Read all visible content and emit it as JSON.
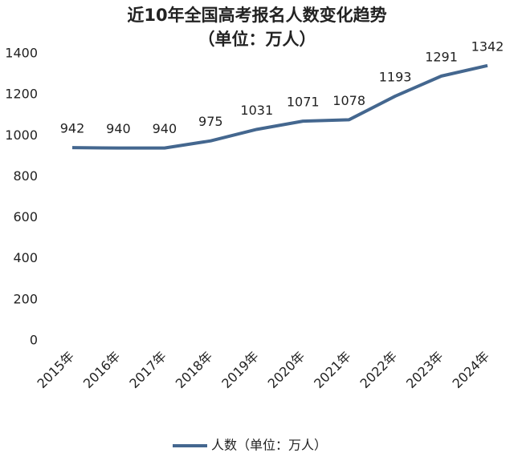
{
  "chart_data": {
    "type": "line",
    "title": "近10年全国高考报名人数变化趋势",
    "subtitle": "（单位：万人）",
    "categories": [
      "2015年",
      "2016年",
      "2017年",
      "2018年",
      "2019年",
      "2020年",
      "2021年",
      "2022年",
      "2023年",
      "2024年"
    ],
    "series": [
      {
        "name": "人数（单位：万人）",
        "color": "#44678f",
        "values": [
          942,
          940,
          940,
          975,
          1031,
          1071,
          1078,
          1193,
          1291,
          1342
        ]
      }
    ],
    "ylim": [
      0,
      1400
    ],
    "yticks": [
      0,
      200,
      400,
      600,
      800,
      1000,
      1200,
      1400
    ],
    "grid": false,
    "legend": "bottom"
  }
}
